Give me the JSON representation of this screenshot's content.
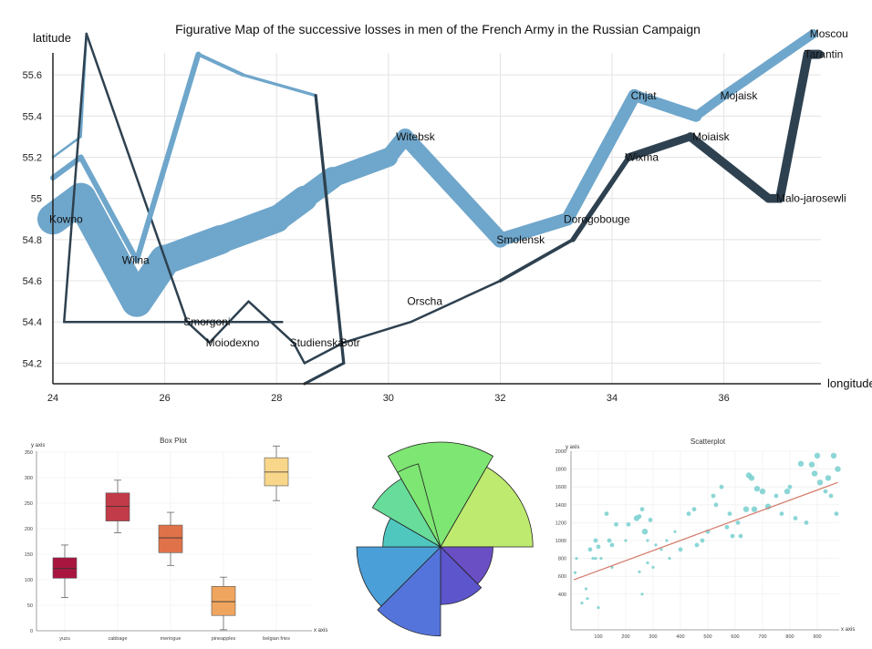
{
  "chart_data": [
    {
      "type": "line",
      "title": "Figurative Map of the successive losses in men of the French Army in the Russian Campaign",
      "xlabel": "longitude",
      "ylabel": "latitude",
      "xlim": [
        24,
        37.8
      ],
      "ylim": [
        54.1,
        55.8
      ],
      "xticks": [
        "24",
        "26",
        "28",
        "30",
        "32",
        "34",
        "36"
      ],
      "yticks": [
        "54.2",
        "54.4",
        "54.6",
        "54.8",
        "55",
        "55.2",
        "55.4",
        "55.6"
      ],
      "colors": {
        "advance": "#6fa6cb",
        "retreat": "#2e4150"
      },
      "series": [
        {
          "direction": "advance",
          "group": 1,
          "points": [
            [
              24.0,
              54.9,
              340000
            ],
            [
              24.5,
              55.0,
              340000
            ],
            [
              25.5,
              54.5,
              340000
            ],
            [
              26.0,
              54.7,
              320000
            ],
            [
              27.0,
              54.8,
              300000
            ],
            [
              28.0,
              54.9,
              280000
            ],
            [
              28.5,
              55.0,
              240000
            ],
            [
              29.0,
              55.1,
              210000
            ],
            [
              30.0,
              55.2,
              180000
            ],
            [
              30.3,
              55.3,
              175000
            ],
            [
              32.0,
              54.8,
              145000
            ],
            [
              33.2,
              54.9,
              140000
            ],
            [
              34.4,
              55.5,
              127100
            ],
            [
              35.5,
              55.4,
              100000
            ],
            [
              36.0,
              55.5,
              100000
            ],
            [
              37.6,
              55.8,
              100000
            ]
          ]
        },
        {
          "direction": "retreat",
          "group": 1,
          "points": [
            [
              37.7,
              55.7,
              100000
            ],
            [
              37.5,
              55.7,
              98000
            ],
            [
              37.0,
              55.0,
              97000
            ],
            [
              36.8,
              55.0,
              96000
            ],
            [
              35.4,
              55.3,
              87000
            ],
            [
              34.3,
              55.2,
              55000
            ],
            [
              33.3,
              54.8,
              37000
            ],
            [
              32.0,
              54.6,
              24000
            ],
            [
              30.4,
              54.4,
              20000
            ],
            [
              29.2,
              54.3,
              20000
            ],
            [
              28.5,
              54.2,
              20000
            ],
            [
              28.3,
              54.3,
              20000
            ],
            [
              27.5,
              54.5,
              20000
            ],
            [
              26.8,
              54.3,
              12000
            ],
            [
              26.4,
              54.4,
              14000
            ],
            [
              24.6,
              55.8,
              8000
            ]
          ]
        },
        {
          "direction": "advance",
          "group": 2,
          "points": [
            [
              24.0,
              55.1,
              60000
            ],
            [
              24.5,
              55.2,
              60000
            ],
            [
              25.5,
              54.7,
              60000
            ],
            [
              26.6,
              55.7,
              40000
            ],
            [
              27.4,
              55.6,
              33000
            ],
            [
              28.7,
              55.5,
              33000
            ]
          ]
        },
        {
          "direction": "retreat",
          "group": 2,
          "points": [
            [
              28.7,
              55.5,
              33000
            ],
            [
              29.2,
              54.2,
              30000
            ],
            [
              28.5,
              54.1,
              30000
            ]
          ]
        },
        {
          "direction": "advance",
          "group": 3,
          "points": [
            [
              24.0,
              55.2,
              22000
            ],
            [
              24.5,
              55.3,
              22000
            ],
            [
              24.6,
              55.8,
              6000
            ]
          ]
        },
        {
          "direction": "retreat",
          "group": 3,
          "points": [
            [
              24.6,
              55.8,
              6000
            ],
            [
              24.2,
              54.4,
              6000
            ],
            [
              28.1,
              54.4,
              6000
            ]
          ]
        }
      ],
      "cities": [
        {
          "name": "Kowno",
          "lon": 24.0,
          "lat": 54.9
        },
        {
          "name": "Wilna",
          "lon": 25.3,
          "lat": 54.7
        },
        {
          "name": "Smorgoni",
          "lon": 26.4,
          "lat": 54.4
        },
        {
          "name": "Moiodexno",
          "lon": 26.8,
          "lat": 54.3
        },
        {
          "name": "Witebsk",
          "lon": 30.2,
          "lat": 55.3
        },
        {
          "name": "Studienska",
          "lon": 28.3,
          "lat": 54.3
        },
        {
          "name": "Botr",
          "lon": 29.2,
          "lat": 54.3
        },
        {
          "name": "Orscha",
          "lon": 30.4,
          "lat": 54.5
        },
        {
          "name": "Smolensk",
          "lon": 32.0,
          "lat": 54.8
        },
        {
          "name": "Dorogobouge",
          "lon": 33.2,
          "lat": 54.9
        },
        {
          "name": "Wixma",
          "lon": 34.3,
          "lat": 55.2
        },
        {
          "name": "Chjat",
          "lon": 34.4,
          "lat": 55.5
        },
        {
          "name": "Mojaisk",
          "lon": 36.0,
          "lat": 55.5
        },
        {
          "name": "Moiaisk",
          "lon": 35.5,
          "lat": 55.3
        },
        {
          "name": "Malo-jarosewli",
          "lon": 37.0,
          "lat": 55.0
        },
        {
          "name": "Moscou",
          "lon": 37.6,
          "lat": 55.8
        },
        {
          "name": "Tarantin",
          "lon": 37.5,
          "lat": 55.7
        }
      ]
    },
    {
      "type": "box",
      "title": "Box Plot",
      "xlabel": "x axis",
      "ylabel": "y axis",
      "ylim": [
        0,
        350
      ],
      "yticks": [
        "0",
        "50",
        "100",
        "150",
        "200",
        "250",
        "300",
        "350"
      ],
      "categories": [
        "yuzu",
        "cabbage",
        "meringue",
        "pineapples",
        "belgian fries"
      ],
      "colors": [
        "#a8163f",
        "#c23b48",
        "#e0724a",
        "#f0a55e",
        "#f8d68a"
      ],
      "boxes": [
        {
          "min": 65,
          "q1": 103,
          "median": 122,
          "q3": 143,
          "max": 168
        },
        {
          "min": 192,
          "q1": 215,
          "median": 244,
          "q3": 270,
          "max": 295
        },
        {
          "min": 128,
          "q1": 153,
          "median": 182,
          "q3": 207,
          "max": 232
        },
        {
          "min": 2,
          "q1": 30,
          "median": 57,
          "q3": 87,
          "max": 105
        },
        {
          "min": 255,
          "q1": 284,
          "median": 311,
          "q3": 339,
          "max": 362
        }
      ]
    },
    {
      "type": "polar-area",
      "wedges": [
        {
          "start": -30,
          "end": 30,
          "value": 1.0,
          "color": "#7ee672"
        },
        {
          "start": 30,
          "end": 90,
          "value": 0.88,
          "color": "#bfea70"
        },
        {
          "start": 90,
          "end": 135,
          "value": 0.5,
          "color": "#6a4fc4"
        },
        {
          "start": 135,
          "end": 180,
          "value": 0.55,
          "color": "#5c55cc"
        },
        {
          "start": 180,
          "end": 225,
          "value": 0.85,
          "color": "#5574db"
        },
        {
          "start": 225,
          "end": 270,
          "value": 0.8,
          "color": "#4a9fd8"
        },
        {
          "start": 270,
          "end": 300,
          "value": 0.55,
          "color": "#4fc7bf"
        },
        {
          "start": 300,
          "end": 330,
          "value": 0.75,
          "color": "#68dc9a"
        },
        {
          "start": 330,
          "end": 345,
          "value": 0.82,
          "color": "#7ee672"
        }
      ]
    },
    {
      "type": "scatter",
      "title": "Scatterplot",
      "xlabel": "x axis",
      "ylabel": "y axis",
      "xlim": [
        0,
        980
      ],
      "ylim": [
        0,
        2000
      ],
      "xticks": [
        "100",
        "200",
        "300",
        "400",
        "500",
        "600",
        "700",
        "800",
        "900"
      ],
      "yticks": [
        "400",
        "600",
        "800",
        "1000",
        "1200",
        "1400",
        "1600",
        "1800",
        "2000"
      ],
      "point_color": "#78cfcf",
      "fit_color": "#d47a6a",
      "fit_line": [
        [
          10,
          560
        ],
        [
          975,
          1650
        ]
      ],
      "points": [
        [
          15,
          640,
          2
        ],
        [
          20,
          800,
          2
        ],
        [
          40,
          300,
          2
        ],
        [
          55,
          460,
          2
        ],
        [
          60,
          350,
          2
        ],
        [
          70,
          900,
          3
        ],
        [
          80,
          800,
          2
        ],
        [
          90,
          1000,
          3
        ],
        [
          100,
          930,
          3
        ],
        [
          110,
          800,
          2
        ],
        [
          130,
          1300,
          3
        ],
        [
          140,
          1000,
          3
        ],
        [
          150,
          950,
          3
        ],
        [
          165,
          1180,
          3
        ],
        [
          200,
          1000,
          2
        ],
        [
          210,
          1180,
          3
        ],
        [
          240,
          1250,
          4
        ],
        [
          250,
          1270,
          3
        ],
        [
          260,
          1350,
          3
        ],
        [
          270,
          1100,
          4
        ],
        [
          280,
          1000,
          2
        ],
        [
          290,
          1230,
          3
        ],
        [
          300,
          700,
          2
        ],
        [
          310,
          950,
          2
        ],
        [
          330,
          900,
          2
        ],
        [
          350,
          1000,
          2
        ],
        [
          360,
          800,
          2
        ],
        [
          380,
          1100,
          2
        ],
        [
          400,
          900,
          3
        ],
        [
          430,
          1300,
          3
        ],
        [
          450,
          1350,
          3
        ],
        [
          460,
          950,
          3
        ],
        [
          480,
          1000,
          3
        ],
        [
          500,
          1100,
          3
        ],
        [
          520,
          1500,
          3
        ],
        [
          530,
          1400,
          3
        ],
        [
          550,
          1600,
          3
        ],
        [
          570,
          1150,
          3
        ],
        [
          590,
          1050,
          3
        ],
        [
          610,
          1200,
          3
        ],
        [
          640,
          1350,
          4
        ],
        [
          650,
          1730,
          4
        ],
        [
          660,
          1700,
          4
        ],
        [
          670,
          1350,
          4
        ],
        [
          680,
          1580,
          4
        ],
        [
          700,
          1550,
          4
        ],
        [
          720,
          1380,
          4
        ],
        [
          750,
          1500,
          3
        ],
        [
          770,
          1300,
          3
        ],
        [
          790,
          1550,
          4
        ],
        [
          800,
          1600,
          3
        ],
        [
          820,
          1250,
          3
        ],
        [
          840,
          1860,
          4
        ],
        [
          860,
          1200,
          3
        ],
        [
          880,
          1850,
          4
        ],
        [
          890,
          1750,
          4
        ],
        [
          900,
          1950,
          4
        ],
        [
          910,
          1650,
          4
        ],
        [
          930,
          1550,
          3
        ],
        [
          940,
          1700,
          4
        ],
        [
          950,
          1500,
          3
        ],
        [
          960,
          1950,
          4
        ],
        [
          970,
          1300,
          3
        ],
        [
          975,
          1800,
          4
        ],
        [
          620,
          1050,
          3
        ],
        [
          580,
          1300,
          3
        ],
        [
          100,
          250,
          2
        ],
        [
          90,
          800,
          2
        ],
        [
          250,
          650,
          2
        ],
        [
          260,
          400,
          2
        ],
        [
          280,
          750,
          2
        ],
        [
          150,
          700,
          2
        ]
      ]
    }
  ]
}
